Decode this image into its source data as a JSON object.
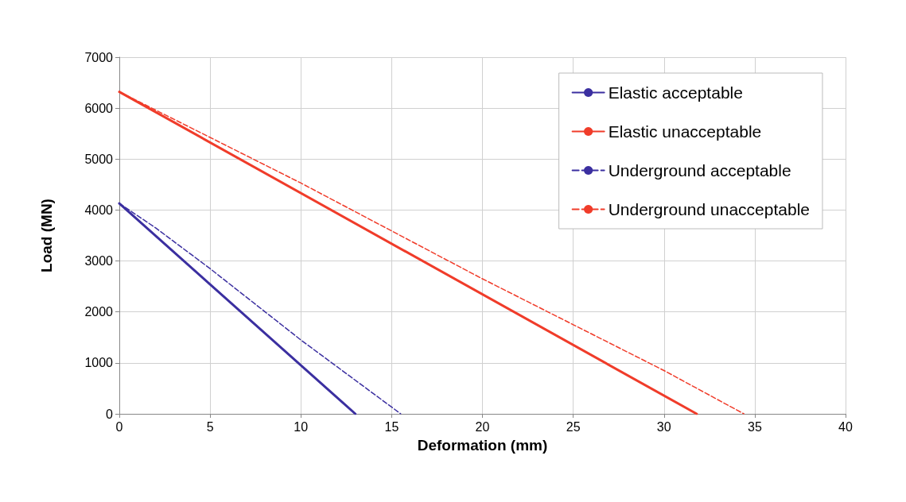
{
  "chart_data": {
    "type": "line",
    "xlabel": "Deformation (mm)",
    "ylabel": "Load (MN)",
    "xlim": [
      0,
      40
    ],
    "xticks": [
      0,
      5,
      10,
      15,
      20,
      25,
      30,
      35,
      40
    ],
    "ylim": [
      0,
      7000
    ],
    "yticks": [
      0,
      1000,
      2000,
      3000,
      4000,
      5000,
      6000,
      7000
    ],
    "grid": true,
    "legend": "top right",
    "marker": "none",
    "series": [
      {
        "name": "Elastic acceptable",
        "color": "#3b2fa0",
        "line_style": "solid",
        "x": [
          0,
          13.0
        ],
        "values": [
          4130,
          0
        ]
      },
      {
        "name": "Elastic unacceptable",
        "color": "#f03c2a",
        "line_style": "solid",
        "x": [
          0,
          31.8
        ],
        "values": [
          6320,
          0
        ]
      },
      {
        "name": "Underground acceptable",
        "color": "#3b2fa0",
        "line_style": "dashed",
        "x": [
          0,
          2,
          5,
          10,
          15.5
        ],
        "values": [
          4130,
          3650,
          2850,
          1450,
          0
        ]
      },
      {
        "name": "Underground unacceptable",
        "color": "#f03c2a",
        "line_style": "dashed",
        "x": [
          0,
          10,
          20,
          30,
          34.4
        ],
        "values": [
          6320,
          4530,
          2650,
          850,
          0
        ]
      }
    ]
  }
}
